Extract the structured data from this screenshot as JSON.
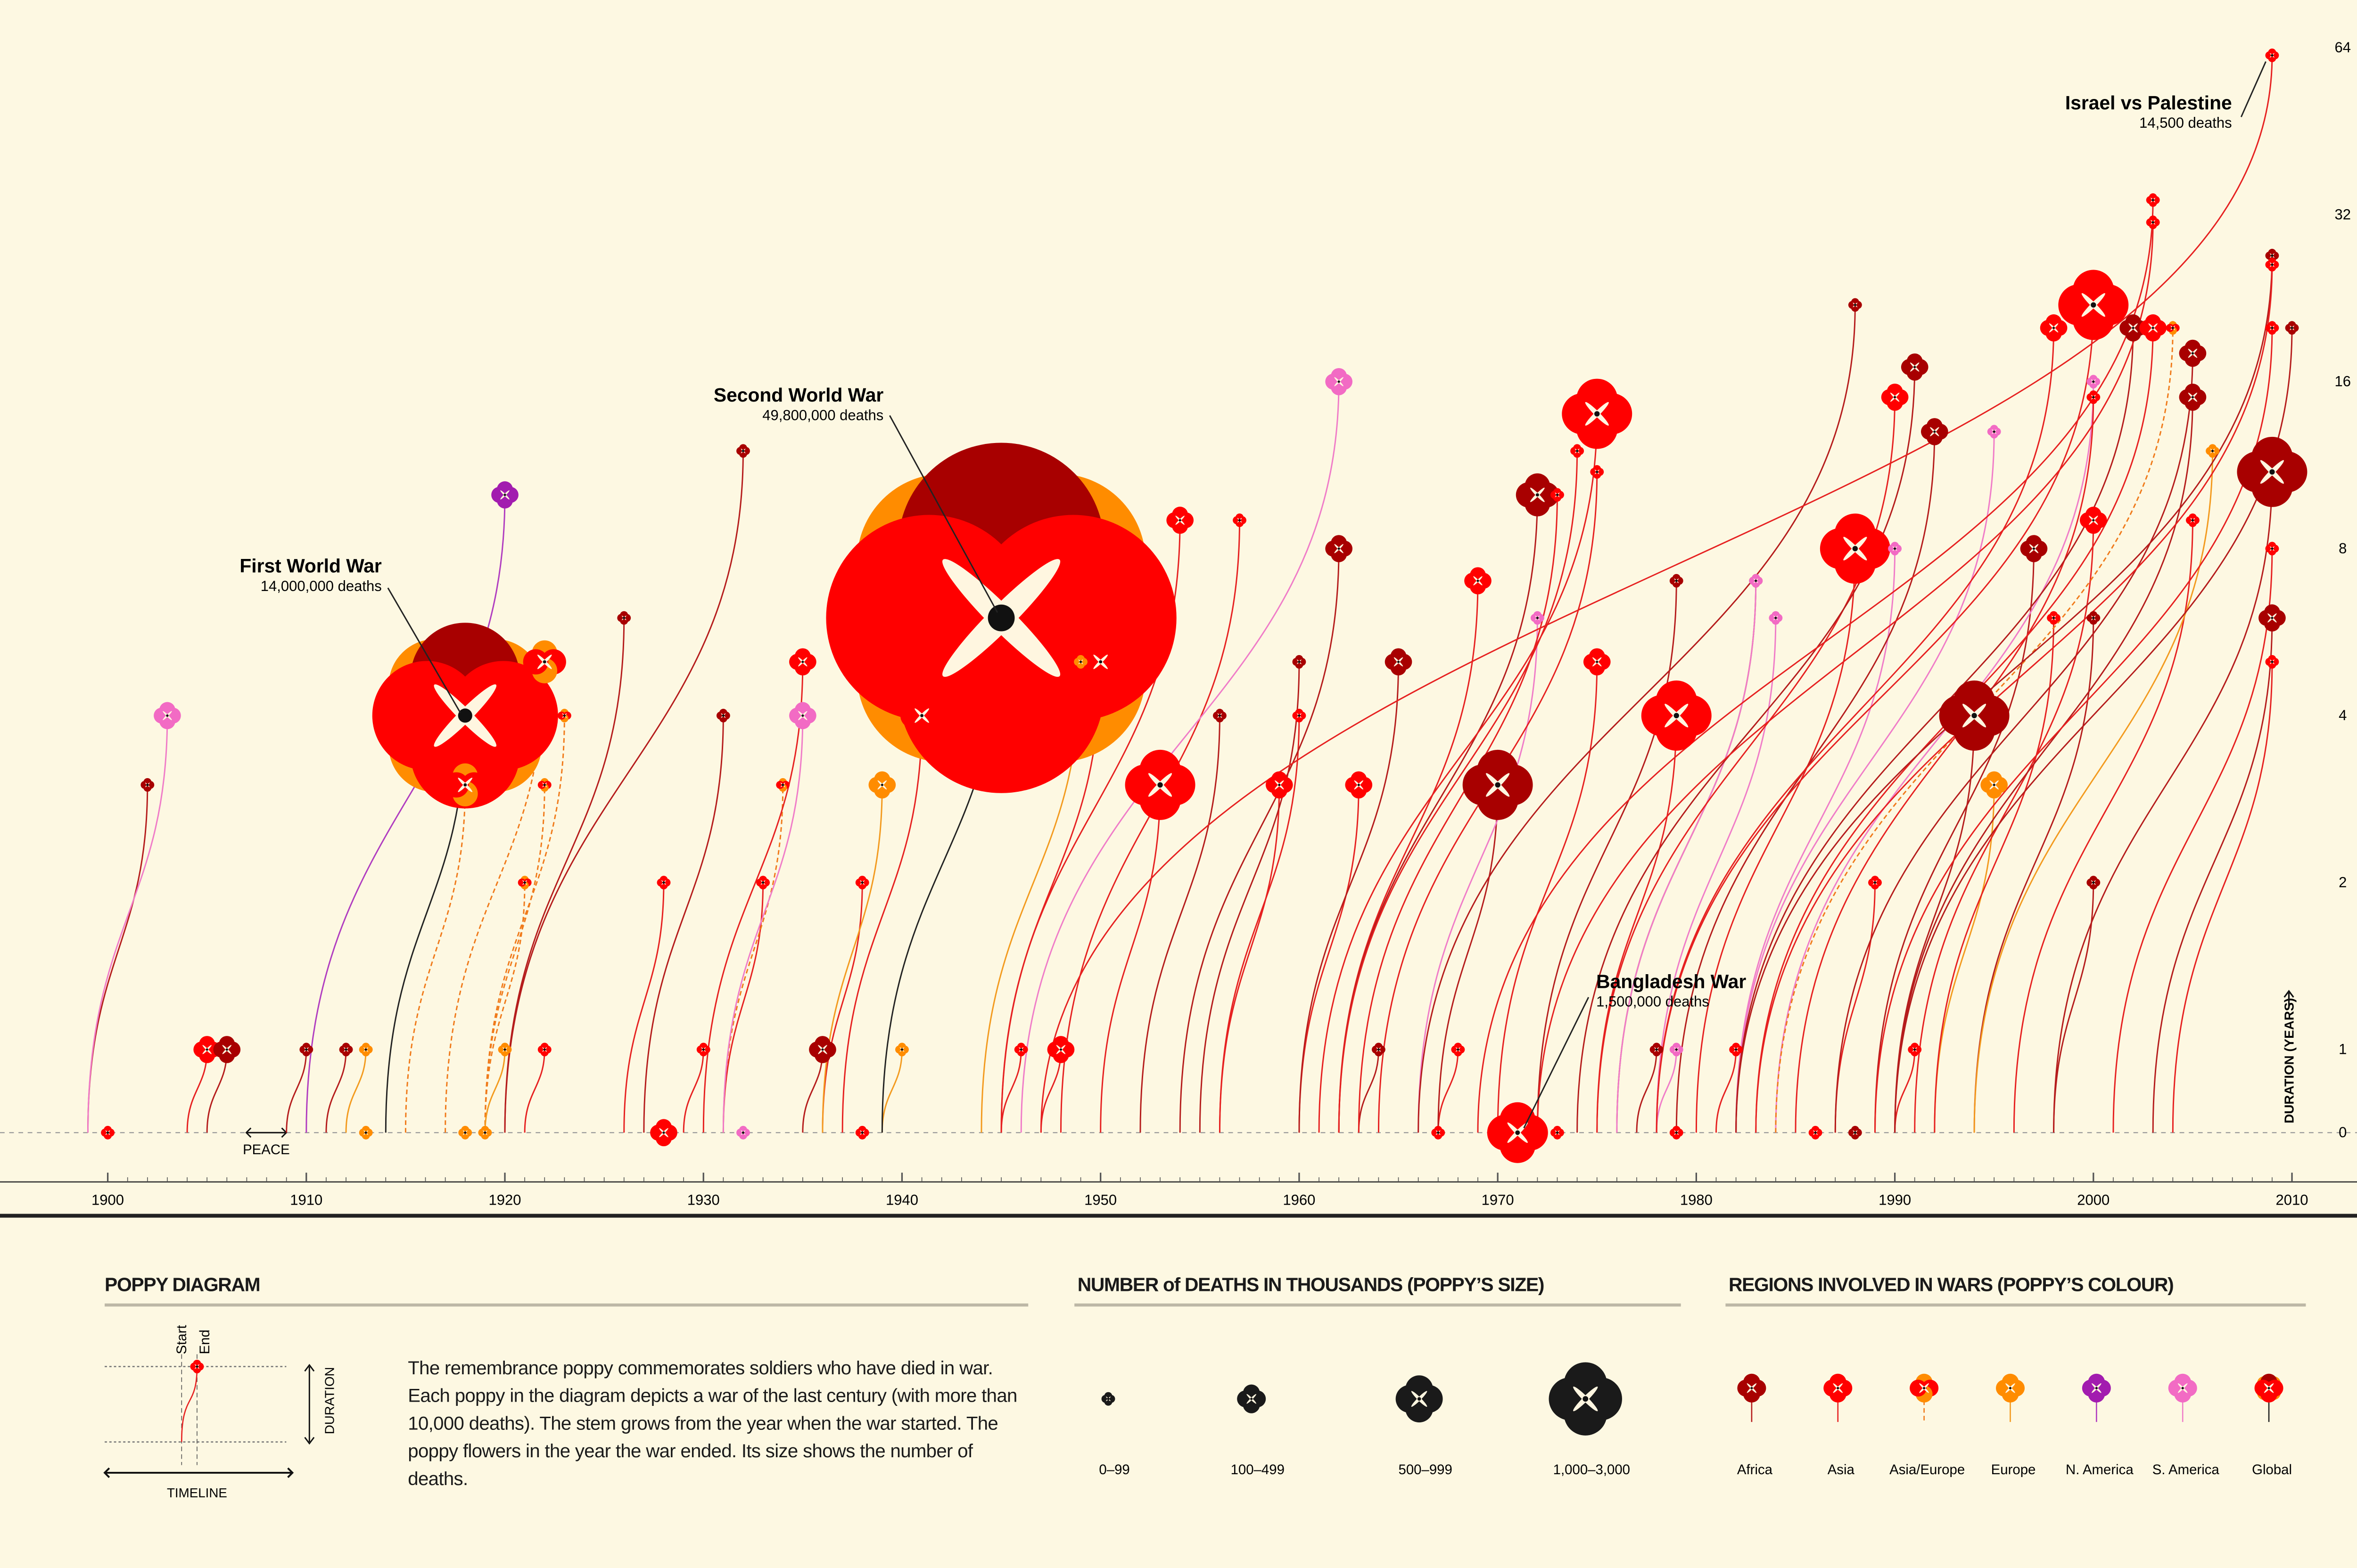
{
  "chart_data": {
    "type": "scatter",
    "subtype": "poppy",
    "x_ticks": [
      1900,
      1910,
      1920,
      1930,
      1940,
      1950,
      1960,
      1970,
      1980,
      1990,
      2000,
      2010
    ],
    "xlim": [
      1899,
      2011
    ],
    "y_ticks": [
      0,
      1,
      2,
      4,
      8,
      16,
      32,
      64
    ],
    "ylim": [
      0,
      64
    ],
    "y_scale": "log2 above 1, linear 0-1",
    "ylabel": "DURATION (YEARS)",
    "grid": "dashed at y ticks (right margin) and baseline 0",
    "peace_label": "PEACE",
    "columns": [
      "start",
      "end",
      "duration",
      "size_class",
      "region",
      "deaths_thousands"
    ],
    "wars": [
      [
        1900,
        1900,
        0,
        0,
        "Asia",
        null
      ],
      [
        1899,
        1902,
        3,
        0,
        "Africa",
        null
      ],
      [
        1899,
        1903,
        4,
        1,
        "S. America",
        null
      ],
      [
        1904,
        1905,
        1,
        1,
        "Asia",
        null
      ],
      [
        1905,
        1906,
        1,
        1,
        "Africa",
        null
      ],
      [
        1909,
        1910,
        1,
        0,
        "Africa",
        null
      ],
      [
        1911,
        1912,
        1,
        0,
        "Africa",
        null
      ],
      [
        1912,
        1913,
        1,
        0,
        "Europe",
        null
      ],
      [
        1913,
        1913,
        0,
        0,
        "Europe",
        null
      ],
      [
        1910,
        1920,
        10,
        1,
        "N. America",
        null
      ],
      [
        1914,
        1918,
        4,
        null,
        "Global",
        14000
      ],
      [
        1917,
        1922,
        5,
        2,
        "Asia/Europe",
        null
      ],
      [
        1919,
        1923,
        4,
        0,
        "Asia/Europe",
        null
      ],
      [
        1919,
        1922,
        3,
        0,
        "Asia/Europe",
        null
      ],
      [
        1919,
        1921,
        2,
        0,
        "Asia/Europe",
        null
      ],
      [
        1918,
        1918,
        0,
        0,
        "Europe",
        null
      ],
      [
        1919,
        1919,
        0,
        0,
        "Europe",
        null
      ],
      [
        1919,
        1920,
        1,
        0,
        "Europe",
        null
      ],
      [
        1921,
        1922,
        1,
        0,
        "Asia",
        null
      ],
      [
        1915,
        1918,
        3,
        2,
        "Asia/Europe",
        null
      ],
      [
        1920,
        1926,
        6,
        0,
        "Africa",
        null
      ],
      [
        1926,
        1928,
        2,
        0,
        "Asia",
        null
      ],
      [
        1928,
        1928,
        0,
        1,
        "Asia",
        null
      ],
      [
        1929,
        1930,
        1,
        0,
        "Asia",
        null
      ],
      [
        1927,
        1931,
        4,
        0,
        "Africa",
        null
      ],
      [
        1920,
        1932,
        12,
        0,
        "Africa",
        null
      ],
      [
        1932,
        1932,
        0,
        0,
        "S. America",
        null
      ],
      [
        1931,
        1933,
        2,
        0,
        "Asia",
        null
      ],
      [
        1931,
        1934,
        3,
        0,
        "Asia/Europe",
        null
      ],
      [
        1930,
        1935,
        5,
        1,
        "Asia",
        null
      ],
      [
        1931,
        1935,
        4,
        1,
        "S. America",
        null
      ],
      [
        1935,
        1936,
        1,
        1,
        "Africa",
        null
      ],
      [
        1936,
        1938,
        2,
        0,
        "Asia",
        null
      ],
      [
        1938,
        1938,
        0,
        0,
        "Asia",
        null
      ],
      [
        1939,
        1940,
        1,
        0,
        "Europe",
        null
      ],
      [
        1939,
        1945,
        6,
        null,
        "Global",
        49800
      ],
      [
        1936,
        1939,
        3,
        1,
        "Europe",
        null
      ],
      [
        1937,
        1941,
        4,
        2,
        "Asia",
        null
      ],
      [
        1945,
        1950,
        5,
        2,
        "Asia",
        null
      ],
      [
        1944,
        1949,
        5,
        0,
        "Europe",
        null
      ],
      [
        1947,
        1948,
        1,
        1,
        "Asia",
        null
      ],
      [
        1945,
        1946,
        1,
        0,
        "Asia",
        null
      ],
      [
        1950,
        1953,
        3,
        3,
        "Asia",
        null
      ],
      [
        1945,
        1954,
        9,
        1,
        "Asia",
        null
      ],
      [
        1952,
        1956,
        4,
        0,
        "Africa",
        null
      ],
      [
        1948,
        1957,
        9,
        0,
        "Asia",
        null
      ],
      [
        1956,
        1959,
        3,
        1,
        "Asia",
        null
      ],
      [
        1955,
        1960,
        5,
        0,
        "Africa",
        null
      ],
      [
        1956,
        1960,
        4,
        0,
        "Asia",
        null
      ],
      [
        1954,
        1962,
        8,
        1,
        "Africa",
        null
      ],
      [
        1946,
        1962,
        16,
        1,
        "S. America",
        null
      ],
      [
        1960,
        1963,
        3,
        1,
        "Asia",
        null
      ],
      [
        1960,
        1965,
        5,
        1,
        "Africa",
        null
      ],
      [
        1967,
        1967,
        0,
        0,
        "Asia",
        null
      ],
      [
        1967,
        1968,
        1,
        0,
        "Asia",
        null
      ],
      [
        1963,
        1964,
        1,
        0,
        "Africa",
        null
      ],
      [
        1962,
        1969,
        7,
        1,
        "Asia",
        null
      ],
      [
        1967,
        1970,
        3,
        3,
        "Africa",
        null
      ],
      [
        1971,
        1971,
        0,
        null,
        "Asia",
        1500
      ],
      [
        1962,
        1972,
        10,
        2,
        "Africa",
        null
      ],
      [
        1966,
        1972,
        6,
        0,
        "S. America",
        null
      ],
      [
        1963,
        1973,
        10,
        0,
        "Asia",
        null
      ],
      [
        1973,
        1973,
        0,
        0,
        "Asia",
        null
      ],
      [
        1962,
        1974,
        12,
        0,
        "Asia",
        null
      ],
      [
        1961,
        1975,
        14,
        3,
        "Asia",
        null
      ],
      [
        1964,
        1975,
        11,
        0,
        "Asia",
        null
      ],
      [
        1970,
        1975,
        5,
        1,
        "Asia",
        null
      ],
      [
        1975,
        1979,
        4,
        3,
        "Asia",
        null
      ],
      [
        1972,
        1979,
        7,
        0,
        "Africa",
        null
      ],
      [
        1979,
        1979,
        0,
        0,
        "Asia",
        null
      ],
      [
        1977,
        1978,
        1,
        0,
        "Africa",
        null
      ],
      [
        1978,
        1979,
        1,
        0,
        "S. America",
        null
      ],
      [
        1981,
        1982,
        1,
        0,
        "Asia",
        null
      ],
      [
        1976,
        1983,
        7,
        0,
        "Africa",
        null
      ],
      [
        1976,
        1983,
        7,
        0,
        "S. America",
        null
      ],
      [
        1978,
        1984,
        6,
        0,
        "S. America",
        null
      ],
      [
        1980,
        1988,
        8,
        3,
        "Asia",
        null
      ],
      [
        1966,
        1988,
        22,
        0,
        "Africa",
        null
      ],
      [
        1982,
        1990,
        8,
        0,
        "S. America",
        null
      ],
      [
        1975,
        1990,
        15,
        1,
        "Asia",
        null
      ],
      [
        1974,
        1991,
        17,
        1,
        "Africa",
        null
      ],
      [
        1990,
        1991,
        1,
        0,
        "Asia",
        null
      ],
      [
        1987,
        1989,
        2,
        0,
        "Asia",
        null
      ],
      [
        1986,
        1986,
        0,
        0,
        "Asia",
        null
      ],
      [
        1988,
        1988,
        0,
        0,
        "Africa",
        null
      ],
      [
        1979,
        1992,
        13,
        1,
        "Africa",
        null
      ],
      [
        1990,
        1994,
        4,
        3,
        "Africa",
        null
      ],
      [
        1982,
        1995,
        13,
        0,
        "S. America",
        null
      ],
      [
        1992,
        1995,
        3,
        1,
        "Europe",
        null
      ],
      [
        1989,
        1997,
        8,
        1,
        "Africa",
        null
      ],
      [
        1978,
        1998,
        20,
        1,
        "Asia",
        null
      ],
      [
        1992,
        1998,
        6,
        0,
        "Asia",
        null
      ],
      [
        1978,
        2000,
        22,
        3,
        "Asia",
        null
      ],
      [
        1991,
        2000,
        9,
        1,
        "Asia",
        null
      ],
      [
        1994,
        2000,
        6,
        0,
        "Africa",
        null
      ],
      [
        1998,
        2000,
        2,
        0,
        "Africa",
        null
      ],
      [
        1984,
        2000,
        16,
        0,
        "S. America",
        null
      ],
      [
        1985,
        2000,
        15,
        0,
        "Asia",
        null
      ],
      [
        1982,
        2002,
        20,
        1,
        "Africa",
        null
      ],
      [
        1983,
        2003,
        20,
        1,
        "Asia",
        null
      ],
      [
        1969,
        2003,
        34,
        0,
        "Asia",
        null
      ],
      [
        1972,
        2003,
        31,
        0,
        "Asia",
        null
      ],
      [
        1984,
        2004,
        20,
        0,
        "Asia/Europe",
        null
      ],
      [
        1987,
        2005,
        18,
        1,
        "Africa",
        null
      ],
      [
        1990,
        2005,
        15,
        1,
        "Africa",
        null
      ],
      [
        1996,
        2005,
        9,
        0,
        "Asia",
        null
      ],
      [
        1994,
        2006,
        12,
        0,
        "Europe",
        null
      ],
      [
        1947,
        2009,
        62,
        null,
        "Asia",
        14.5
      ],
      [
        1998,
        2009,
        11,
        3,
        "Africa",
        null
      ],
      [
        2003,
        2009,
        6,
        1,
        "Africa",
        null
      ],
      [
        2001,
        2009,
        8,
        0,
        "Asia",
        null
      ],
      [
        2004,
        2009,
        5,
        0,
        "Asia",
        null
      ],
      [
        1989,
        2009,
        20,
        0,
        "Asia",
        null
      ],
      [
        1982,
        2009,
        27,
        0,
        "Africa",
        null
      ],
      [
        1983,
        2009,
        26,
        0,
        "Asia",
        null
      ],
      [
        1990,
        2010,
        20,
        0,
        "Africa",
        null
      ]
    ],
    "annotations": [
      {
        "name": "Second World War",
        "deaths": "49,800,000 deaths"
      },
      {
        "name": "First World War",
        "deaths": "14,000,000 deaths"
      },
      {
        "name": "Israel vs Palestine",
        "deaths": "14,500 deaths"
      },
      {
        "name": "Bangladesh War",
        "deaths": "1,500,000 deaths"
      }
    ]
  },
  "region_colors": {
    "Africa": "#a80000",
    "Asia": "#ff0000",
    "Asia/Europe": "#ff8c00",
    "Europe": "#ff8c00",
    "N. America": "#a21caf",
    "S. America": "#f26bc4",
    "Global": "#ff0000"
  },
  "legend": {
    "diagram": {
      "title": "POPPY DIAGRAM",
      "start": "Start",
      "end": "End",
      "duration": "DURATION",
      "timeline": "TIMELINE",
      "text": "The remembrance poppy commemorates soldiers who have died in war. Each poppy in the diagram depicts a war of the last century (with more than 10,000 deaths). The stem grows from the year when the war started. The poppy flowers in the year the war ended. Its size shows the number of deaths."
    },
    "sizes": {
      "title": "NUMBER of DEATHS IN THOUSANDS (POPPY’S SIZE)",
      "items": [
        "0–99",
        "100–499",
        "500–999",
        "1,000–3,000"
      ]
    },
    "regions": {
      "title": "REGIONS INVOLVED IN WARS (POPPY’S COLOUR)",
      "items": [
        "Africa",
        "Asia",
        "Asia/Europe",
        "Europe",
        "N. America",
        "S. America",
        "Global"
      ]
    }
  }
}
